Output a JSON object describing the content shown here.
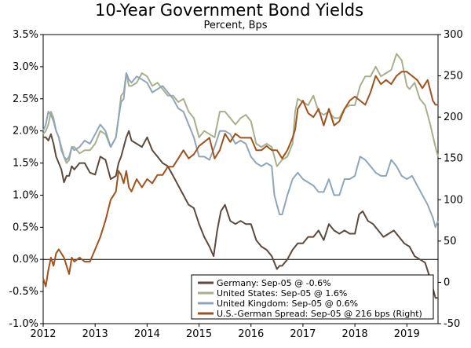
{
  "chart_data": {
    "type": "line",
    "title": "10-Year Government Bond Yields",
    "subtitle": "Percent, Bps",
    "x_ticks": [
      "2012",
      "2013",
      "2014",
      "2015",
      "2016",
      "2017",
      "2018",
      "2019"
    ],
    "xlim": [
      2012.0,
      2019.6
    ],
    "y_left": {
      "ylim": [
        -1.0,
        3.5
      ],
      "tick_values": [
        -1.0,
        -0.5,
        0.0,
        0.5,
        1.0,
        1.5,
        2.0,
        2.5,
        3.0,
        3.5
      ],
      "tick_labels": [
        "-1.0%",
        "-0.5%",
        "0.0%",
        "0.5%",
        "1.0%",
        "1.5%",
        "2.0%",
        "2.5%",
        "3.0%",
        "3.5%"
      ]
    },
    "y_right": {
      "ylim": [
        -50,
        300
      ],
      "tick_values": [
        -50,
        0,
        50,
        100,
        150,
        200,
        250,
        300
      ],
      "tick_labels": [
        "-50",
        "0",
        "50",
        "100",
        "150",
        "200",
        "250",
        "300"
      ]
    },
    "zero_line": 0.0,
    "legend_position": "bottom-right",
    "series": [
      {
        "name": "Germany: Sep-05 @ -0.6%",
        "axis": "left",
        "color": "#5a4a3f",
        "x": [
          2012.0,
          2012.05,
          2012.1,
          2012.15,
          2012.2,
          2012.25,
          2012.3,
          2012.35,
          2012.4,
          2012.45,
          2012.5,
          2012.55,
          2012.6,
          2012.7,
          2012.8,
          2012.9,
          2013.0,
          2013.1,
          2013.2,
          2013.3,
          2013.4,
          2013.45,
          2013.5,
          2013.55,
          2013.6,
          2013.65,
          2013.7,
          2013.8,
          2013.9,
          2014.0,
          2014.1,
          2014.2,
          2014.3,
          2014.4,
          2014.5,
          2014.6,
          2014.7,
          2014.8,
          2014.9,
          2015.0,
          2015.1,
          2015.2,
          2015.28,
          2015.35,
          2015.42,
          2015.5,
          2015.6,
          2015.7,
          2015.8,
          2015.9,
          2016.0,
          2016.1,
          2016.2,
          2016.3,
          2016.4,
          2016.5,
          2016.55,
          2016.6,
          2016.7,
          2016.8,
          2016.9,
          2017.0,
          2017.1,
          2017.2,
          2017.3,
          2017.4,
          2017.5,
          2017.6,
          2017.7,
          2017.8,
          2017.9,
          2018.0,
          2018.08,
          2018.15,
          2018.25,
          2018.35,
          2018.45,
          2018.55,
          2018.65,
          2018.75,
          2018.85,
          2018.95,
          2019.05,
          2019.15,
          2019.25,
          2019.35,
          2019.45,
          2019.55,
          2019.6
        ],
        "values": [
          1.9,
          1.9,
          1.85,
          1.95,
          1.8,
          1.6,
          1.5,
          1.4,
          1.2,
          1.3,
          1.3,
          1.45,
          1.4,
          1.5,
          1.5,
          1.35,
          1.32,
          1.6,
          1.55,
          1.25,
          1.3,
          1.5,
          1.6,
          1.75,
          1.9,
          2.0,
          1.85,
          1.8,
          1.75,
          1.9,
          1.7,
          1.6,
          1.5,
          1.45,
          1.3,
          1.15,
          1.0,
          0.85,
          0.8,
          0.55,
          0.35,
          0.2,
          0.05,
          0.45,
          0.75,
          0.85,
          0.6,
          0.55,
          0.6,
          0.55,
          0.55,
          0.3,
          0.2,
          0.15,
          0.05,
          -0.15,
          -0.1,
          -0.1,
          0.0,
          0.15,
          0.25,
          0.25,
          0.35,
          0.35,
          0.45,
          0.3,
          0.55,
          0.45,
          0.4,
          0.45,
          0.4,
          0.4,
          0.7,
          0.75,
          0.6,
          0.55,
          0.45,
          0.35,
          0.4,
          0.45,
          0.35,
          0.25,
          0.2,
          0.05,
          0.0,
          -0.05,
          -0.3,
          -0.6,
          -0.6
        ]
      },
      {
        "name": "United States: Sep-05 @ 1.6%",
        "axis": "left",
        "color": "#a7b08d",
        "x": [
          2012.0,
          2012.05,
          2012.1,
          2012.15,
          2012.2,
          2012.25,
          2012.3,
          2012.35,
          2012.4,
          2012.45,
          2012.5,
          2012.55,
          2012.6,
          2012.7,
          2012.8,
          2012.9,
          2013.0,
          2013.1,
          2013.2,
          2013.3,
          2013.4,
          2013.45,
          2013.5,
          2013.55,
          2013.6,
          2013.65,
          2013.7,
          2013.8,
          2013.9,
          2014.0,
          2014.1,
          2014.2,
          2014.3,
          2014.4,
          2014.5,
          2014.6,
          2014.7,
          2014.8,
          2014.9,
          2015.0,
          2015.1,
          2015.2,
          2015.3,
          2015.4,
          2015.5,
          2015.6,
          2015.7,
          2015.8,
          2015.9,
          2016.0,
          2016.1,
          2016.2,
          2016.3,
          2016.4,
          2016.5,
          2016.6,
          2016.7,
          2016.8,
          2016.85,
          2016.9,
          2017.0,
          2017.1,
          2017.2,
          2017.3,
          2017.4,
          2017.5,
          2017.6,
          2017.7,
          2017.8,
          2017.9,
          2018.0,
          2018.1,
          2018.2,
          2018.3,
          2018.4,
          2018.5,
          2018.6,
          2018.7,
          2018.8,
          2018.9,
          2019.0,
          2019.05,
          2019.15,
          2019.25,
          2019.35,
          2019.45,
          2019.55,
          2019.6
        ],
        "values": [
          1.95,
          2.0,
          2.1,
          2.3,
          2.2,
          2.0,
          1.9,
          1.75,
          1.6,
          1.5,
          1.55,
          1.75,
          1.75,
          1.65,
          1.7,
          1.7,
          1.8,
          2.0,
          1.95,
          1.75,
          1.9,
          2.2,
          2.55,
          2.6,
          2.9,
          2.7,
          2.7,
          2.75,
          2.9,
          2.85,
          2.7,
          2.75,
          2.65,
          2.55,
          2.55,
          2.45,
          2.5,
          2.3,
          2.2,
          1.9,
          2.0,
          1.95,
          1.9,
          2.3,
          2.3,
          2.2,
          2.1,
          2.2,
          2.25,
          2.15,
          1.8,
          1.75,
          1.8,
          1.75,
          1.45,
          1.55,
          1.6,
          1.8,
          2.3,
          2.5,
          2.45,
          2.4,
          2.55,
          2.3,
          2.25,
          2.3,
          2.2,
          2.2,
          2.35,
          2.4,
          2.4,
          2.7,
          2.85,
          2.85,
          3.0,
          2.85,
          2.9,
          2.95,
          3.2,
          3.1,
          2.7,
          2.65,
          2.75,
          2.5,
          2.4,
          2.1,
          1.75,
          1.6
        ]
      },
      {
        "name": "United Kingdom: Sep-05 @ 0.6%",
        "axis": "left",
        "color": "#8fa6b8",
        "x": [
          2012.0,
          2012.05,
          2012.1,
          2012.15,
          2012.2,
          2012.25,
          2012.3,
          2012.35,
          2012.4,
          2012.45,
          2012.5,
          2012.55,
          2012.6,
          2012.7,
          2012.8,
          2012.9,
          2013.0,
          2013.1,
          2013.2,
          2013.3,
          2013.4,
          2013.45,
          2013.5,
          2013.55,
          2013.6,
          2013.65,
          2013.7,
          2013.8,
          2013.9,
          2014.0,
          2014.1,
          2014.2,
          2014.3,
          2014.4,
          2014.5,
          2014.6,
          2014.7,
          2014.8,
          2014.9,
          2015.0,
          2015.1,
          2015.2,
          2015.3,
          2015.4,
          2015.5,
          2015.6,
          2015.7,
          2015.8,
          2015.9,
          2016.0,
          2016.1,
          2016.2,
          2016.3,
          2016.4,
          2016.45,
          2016.5,
          2016.55,
          2016.6,
          2016.7,
          2016.8,
          2016.9,
          2017.0,
          2017.1,
          2017.2,
          2017.3,
          2017.4,
          2017.5,
          2017.6,
          2017.7,
          2017.8,
          2017.9,
          2018.0,
          2018.1,
          2018.2,
          2018.3,
          2018.4,
          2018.5,
          2018.6,
          2018.7,
          2018.8,
          2018.9,
          2019.0,
          2019.1,
          2019.2,
          2019.3,
          2019.4,
          2019.5,
          2019.55,
          2019.6
        ],
        "values": [
          2.0,
          2.1,
          2.3,
          2.25,
          2.15,
          2.0,
          1.9,
          1.7,
          1.6,
          1.55,
          1.6,
          1.75,
          1.7,
          1.75,
          1.85,
          1.8,
          1.95,
          2.1,
          2.0,
          1.75,
          1.9,
          2.2,
          2.45,
          2.5,
          2.9,
          2.8,
          2.75,
          2.85,
          2.8,
          2.75,
          2.6,
          2.65,
          2.7,
          2.6,
          2.5,
          2.35,
          2.3,
          2.1,
          1.9,
          1.6,
          1.6,
          1.55,
          1.75,
          2.0,
          2.0,
          1.95,
          1.8,
          1.85,
          1.8,
          1.6,
          1.5,
          1.45,
          1.5,
          1.45,
          1.0,
          0.85,
          0.7,
          0.7,
          1.0,
          1.25,
          1.35,
          1.25,
          1.2,
          1.15,
          1.05,
          1.05,
          1.25,
          1.0,
          1.0,
          1.25,
          1.25,
          1.3,
          1.6,
          1.55,
          1.45,
          1.35,
          1.3,
          1.3,
          1.55,
          1.45,
          1.3,
          1.25,
          1.3,
          1.15,
          1.0,
          0.85,
          0.65,
          0.5,
          0.6
        ]
      },
      {
        "name": "U.S.-German Spread: Sep-05 @ 216 bps (Right)",
        "axis": "right",
        "color": "#a0521c",
        "x": [
          2012.0,
          2012.05,
          2012.1,
          2012.15,
          2012.2,
          2012.25,
          2012.3,
          2012.35,
          2012.4,
          2012.45,
          2012.5,
          2012.55,
          2012.6,
          2012.7,
          2012.8,
          2012.9,
          2013.0,
          2013.1,
          2013.2,
          2013.3,
          2013.4,
          2013.45,
          2013.5,
          2013.55,
          2013.6,
          2013.65,
          2013.7,
          2013.8,
          2013.9,
          2014.0,
          2014.1,
          2014.2,
          2014.3,
          2014.4,
          2014.5,
          2014.6,
          2014.7,
          2014.8,
          2014.9,
          2015.0,
          2015.1,
          2015.2,
          2015.3,
          2015.4,
          2015.5,
          2015.6,
          2015.7,
          2015.8,
          2015.9,
          2016.0,
          2016.1,
          2016.2,
          2016.3,
          2016.4,
          2016.5,
          2016.6,
          2016.7,
          2016.8,
          2016.85,
          2016.9,
          2017.0,
          2017.1,
          2017.2,
          2017.3,
          2017.4,
          2017.5,
          2017.6,
          2017.7,
          2017.8,
          2017.9,
          2018.0,
          2018.1,
          2018.2,
          2018.3,
          2018.4,
          2018.5,
          2018.6,
          2018.7,
          2018.8,
          2018.9,
          2019.0,
          2019.1,
          2019.2,
          2019.3,
          2019.4,
          2019.5,
          2019.55,
          2019.6
        ],
        "values": [
          5,
          -5,
          15,
          30,
          20,
          35,
          40,
          35,
          30,
          20,
          10,
          30,
          25,
          30,
          25,
          25,
          40,
          55,
          75,
          100,
          110,
          135,
          130,
          120,
          135,
          115,
          110,
          125,
          115,
          125,
          120,
          130,
          130,
          140,
          140,
          150,
          160,
          150,
          155,
          165,
          170,
          175,
          150,
          160,
          180,
          170,
          180,
          175,
          175,
          175,
          160,
          160,
          165,
          160,
          160,
          150,
          160,
          175,
          185,
          210,
          220,
          205,
          200,
          210,
          190,
          210,
          190,
          195,
          210,
          220,
          225,
          220,
          215,
          230,
          250,
          240,
          245,
          240,
          250,
          255,
          255,
          250,
          245,
          235,
          245,
          220,
          215,
          215
        ]
      }
    ]
  }
}
